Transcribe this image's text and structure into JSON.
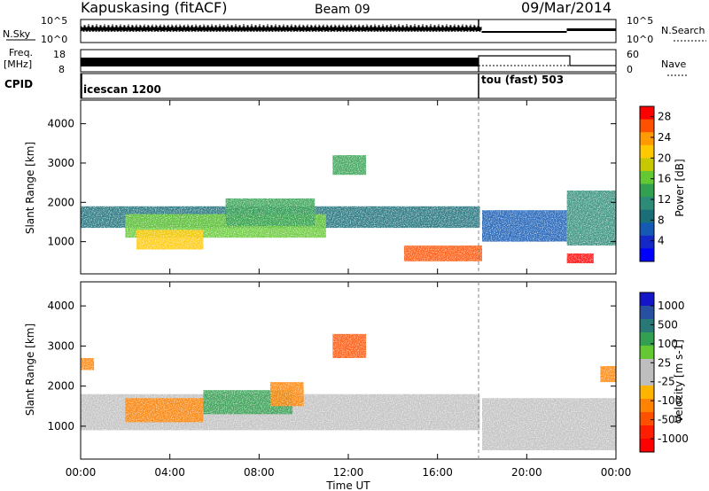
{
  "header": {
    "station": "Kapuskasing (fitACF)",
    "beam": "Beam 09",
    "date": "09/Mar/2014"
  },
  "noise_panel": {
    "left_label": "N.Sky",
    "right_label": "N.Search",
    "left_ticks": [
      "10^5",
      "10^0"
    ],
    "right_ticks": [
      "10^5",
      "10^0"
    ]
  },
  "freq_panel": {
    "left_label_1": "Freq.",
    "left_label_2": "[MHz]",
    "right_label": "Nave",
    "left_ticks": [
      "18",
      "8"
    ],
    "right_ticks": [
      "60",
      "0"
    ]
  },
  "cpid_panel": {
    "label": "CPID",
    "modes": [
      {
        "name": "icescan 1200",
        "start_hour": 0
      },
      {
        "name": "tou (fast) 503",
        "start_hour": 18
      }
    ]
  },
  "x_axis": {
    "label": "Time UT",
    "ticks": [
      "00:00",
      "04:00",
      "08:00",
      "12:00",
      "16:00",
      "20:00",
      "00:00"
    ]
  },
  "power_panel": {
    "ylabel": "Slant Range [km]",
    "yticks": [
      "4000",
      "3000",
      "2000",
      "1000"
    ],
    "cbar_label": "Power [dB]",
    "cbar_ticks": [
      "28",
      "24",
      "20",
      "16",
      "12",
      "8",
      "4"
    ],
    "cbar_colors": [
      "#ff0000",
      "#ff5000",
      "#ff9a00",
      "#ffc800",
      "#c8c800",
      "#64c832",
      "#32a050",
      "#2d8c78",
      "#196e78",
      "#145ab4",
      "#1428c8",
      "#0000ff"
    ]
  },
  "velocity_panel": {
    "ylabel": "Slant Range [km]",
    "yticks": [
      "4000",
      "3000",
      "2000",
      "1000"
    ],
    "cbar_label": "Velocity [m s-1]",
    "cbar_ticks": [
      "1000",
      "500",
      "100",
      "25",
      "-25",
      "-100",
      "-500",
      "-1000"
    ],
    "cbar_colors": [
      "#1414c8",
      "#2850a0",
      "#287878",
      "#32a050",
      "#64c832",
      "#bebebe",
      "#bebebe",
      "#ffb400",
      "#ff8200",
      "#ff5000",
      "#ff1e00",
      "#ff0000"
    ]
  },
  "chart_data": [
    {
      "type": "heatmap",
      "title": "Power",
      "quantity": "Power [dB]",
      "x_unit": "hours UT",
      "x_range": [
        0,
        24
      ],
      "ylabel": "Slant Range [km]",
      "ylim": [
        180,
        4600
      ],
      "clim": [
        0,
        30
      ],
      "regions": [
        {
          "t0": 0.0,
          "t1": 17.9,
          "r0": 1350,
          "r1": 1900,
          "value": 8
        },
        {
          "t0": 2.0,
          "t1": 11.0,
          "r0": 1100,
          "r1": 1700,
          "value": 16
        },
        {
          "t0": 2.5,
          "t1": 5.5,
          "r0": 800,
          "r1": 1300,
          "value": 22
        },
        {
          "t0": 6.5,
          "t1": 10.5,
          "r0": 1400,
          "r1": 2100,
          "value": 14
        },
        {
          "t0": 11.3,
          "t1": 12.8,
          "r0": 2700,
          "r1": 3200,
          "value": 14
        },
        {
          "t0": 14.5,
          "t1": 18.0,
          "r0": 500,
          "r1": 900,
          "value": 25
        },
        {
          "t0": 18.0,
          "t1": 21.8,
          "r0": 1000,
          "r1": 1800,
          "value": 6
        },
        {
          "t0": 21.8,
          "t1": 24.0,
          "r0": 900,
          "r1": 2300,
          "value": 12
        },
        {
          "t0": 21.8,
          "t1": 23.0,
          "r0": 450,
          "r1": 700,
          "value": 29
        }
      ]
    },
    {
      "type": "heatmap",
      "title": "Velocity",
      "quantity": "Velocity [m s-1]",
      "x_unit": "hours UT",
      "x_range": [
        0,
        24
      ],
      "ylabel": "Slant Range [km]",
      "ylim": [
        180,
        4600
      ],
      "regions": [
        {
          "t0": 0.0,
          "t1": 17.9,
          "r0": 900,
          "r1": 1800,
          "value": 0
        },
        {
          "t0": 2.0,
          "t1": 5.5,
          "r0": 1100,
          "r1": 1700,
          "value": -250
        },
        {
          "t0": 5.5,
          "t1": 9.5,
          "r0": 1300,
          "r1": 1900,
          "value": 80
        },
        {
          "t0": 8.5,
          "t1": 10.0,
          "r0": 1500,
          "r1": 2100,
          "value": -200
        },
        {
          "t0": 11.3,
          "t1": 12.8,
          "r0": 2700,
          "r1": 3300,
          "value": -300
        },
        {
          "t0": 0.0,
          "t1": 0.6,
          "r0": 2400,
          "r1": 2700,
          "value": -200
        },
        {
          "t0": 18.0,
          "t1": 24.0,
          "r0": 400,
          "r1": 1700,
          "value": 0
        },
        {
          "t0": 23.3,
          "t1": 24.0,
          "r0": 2100,
          "r1": 2500,
          "value": -150
        }
      ]
    }
  ]
}
